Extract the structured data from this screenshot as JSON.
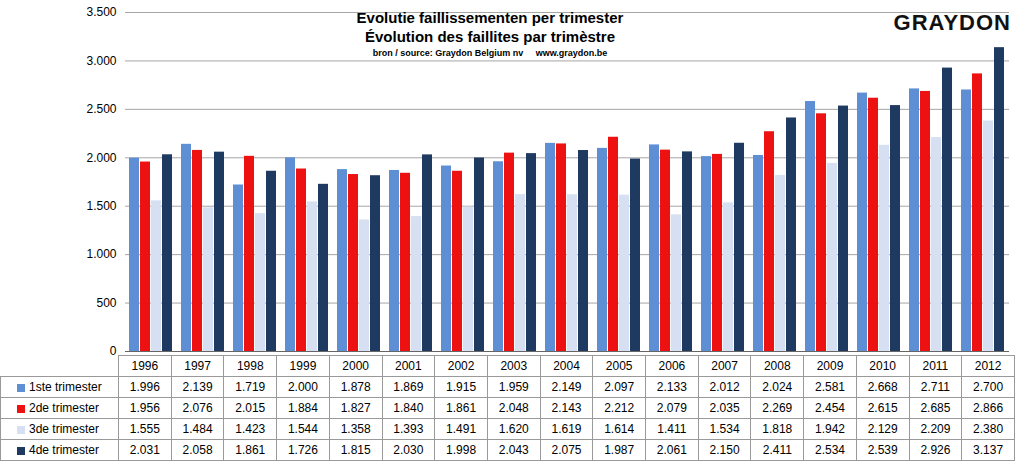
{
  "chart_data": {
    "type": "bar",
    "title": "Evolutie faillissementen per trimester",
    "subtitle": "Évolution des faillites par trimèstre",
    "annotations": [
      "bron / source: Graydon Belgium nv     www.graydon.be",
      "GRAYDON"
    ],
    "categories": [
      "1996",
      "1997",
      "1998",
      "1999",
      "2000",
      "2001",
      "2002",
      "2003",
      "2004",
      "2005",
      "2006",
      "2007",
      "2008",
      "2009",
      "2010",
      "2011",
      "2012"
    ],
    "series": [
      {
        "name": "1ste trimester",
        "color": "#5e8fd4",
        "values": [
          1996,
          2139,
          1719,
          2000,
          1878,
          1869,
          1915,
          1959,
          2149,
          2097,
          2133,
          2012,
          2024,
          2581,
          2668,
          2711,
          2700
        ],
        "value_labels": [
          "1.996",
          "2.139",
          "1.719",
          "2.000",
          "1.878",
          "1.869",
          "1.915",
          "1.959",
          "2.149",
          "2.097",
          "2.133",
          "2.012",
          "2.024",
          "2.581",
          "2.668",
          "2.711",
          "2.700"
        ]
      },
      {
        "name": "2de trimester",
        "color": "#ee1111",
        "values": [
          1956,
          2076,
          2015,
          1884,
          1827,
          1840,
          1861,
          2048,
          2143,
          2212,
          2079,
          2035,
          2269,
          2454,
          2615,
          2685,
          2866
        ],
        "value_labels": [
          "1.956",
          "2.076",
          "2.015",
          "1.884",
          "1.827",
          "1.840",
          "1.861",
          "2.048",
          "2.143",
          "2.212",
          "2.079",
          "2.035",
          "2.269",
          "2.454",
          "2.615",
          "2.685",
          "2.866"
        ]
      },
      {
        "name": "3de trimester",
        "color": "#d6e0f2",
        "values": [
          1555,
          1484,
          1423,
          1544,
          1358,
          1393,
          1491,
          1620,
          1619,
          1614,
          1411,
          1534,
          1818,
          1942,
          2129,
          2209,
          2380
        ],
        "value_labels": [
          "1.555",
          "1.484",
          "1.423",
          "1.544",
          "1.358",
          "1.393",
          "1.491",
          "1.620",
          "1.619",
          "1.614",
          "1.411",
          "1.534",
          "1.818",
          "1.942",
          "2.129",
          "2.209",
          "2.380"
        ]
      },
      {
        "name": "4de trimester",
        "color": "#1f3a60",
        "values": [
          2031,
          2058,
          1861,
          1726,
          1815,
          2030,
          1998,
          2043,
          2075,
          1987,
          2061,
          2150,
          2411,
          2534,
          2539,
          2926,
          3137
        ],
        "value_labels": [
          "2.031",
          "2.058",
          "1.861",
          "1.726",
          "1.815",
          "2.030",
          "1.998",
          "2.043",
          "2.075",
          "1.987",
          "2.061",
          "2.150",
          "2.411",
          "2.534",
          "2.539",
          "2.926",
          "3.137"
        ]
      }
    ],
    "ylim": [
      0,
      3500
    ],
    "yticks": [
      0,
      500,
      {
        "value": 1000,
        "label": "1.000"
      },
      {
        "value": 1500,
        "label": "1.500"
      },
      {
        "value": 2000,
        "label": "2.000"
      },
      {
        "value": 2500,
        "label": "2.500"
      },
      {
        "value": 3000,
        "label": "3.000"
      },
      {
        "value": 3500,
        "label": "3.500"
      }
    ],
    "grid": true,
    "legend": "bottom"
  }
}
